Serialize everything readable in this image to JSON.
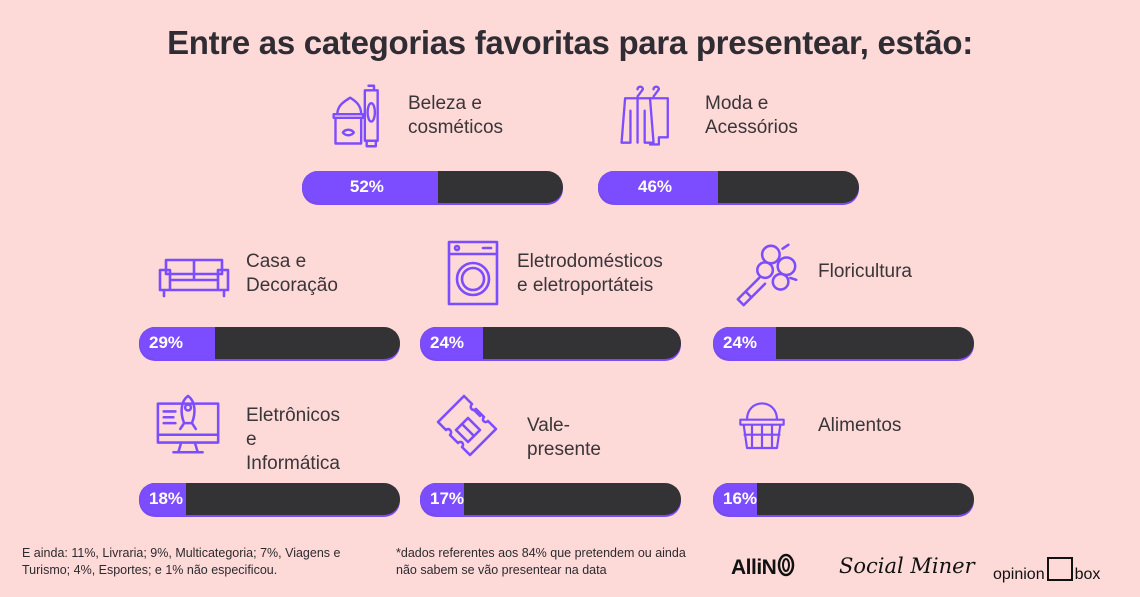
{
  "title": "Entre as categorias favoritas para presentear, estão:",
  "colors": {
    "background": "#fdd9d8",
    "fill": "#7c4dff",
    "track": "#333234"
  },
  "chart_data": {
    "type": "bar",
    "title": "Entre as categorias favoritas para presentear, estão:",
    "categories": [
      "Beleza e cosméticos",
      "Moda e Acessórios",
      "Casa e Decoração",
      "Eletrodomésticos e eletroportáteis",
      "Floricultura",
      "Eletrônicos e Informática",
      "Vale-presente",
      "Alimentos"
    ],
    "values": [
      52,
      46,
      29,
      24,
      24,
      18,
      17,
      16
    ],
    "ylim": [
      0,
      100
    ]
  },
  "items": [
    {
      "label": "Beleza e\ncosméticos",
      "value": 52,
      "pct": "52%",
      "icon": "cosmetics-icon"
    },
    {
      "label": "Moda e\nAcessórios",
      "value": 46,
      "pct": "46%",
      "icon": "clothes-hanger-icon"
    },
    {
      "label": "Casa e\nDecoração",
      "value": 29,
      "pct": "29%",
      "icon": "sofa-icon"
    },
    {
      "label": "Eletrodomésticos\ne eletroportáteis",
      "value": 24,
      "pct": "24%",
      "icon": "washing-machine-icon"
    },
    {
      "label": "Floricultura",
      "value": 24,
      "pct": "24%",
      "icon": "flower-bouquet-icon"
    },
    {
      "label": "Eletrônicos e\nInformática",
      "value": 18,
      "pct": "18%",
      "icon": "computer-rocket-icon"
    },
    {
      "label": "Vale-presente",
      "value": 17,
      "pct": "17%",
      "icon": "gift-ticket-icon"
    },
    {
      "label": "Alimentos",
      "value": 16,
      "pct": "16%",
      "icon": "basket-icon"
    }
  ],
  "footer": {
    "note_left": "E ainda: 11%, Livraria; 9%, Multicategoria; 7%, Viagens e Turismo; 4%, Esportes; e 1% não especificou.",
    "note_right": "*dados referentes aos 84% que pretendem ou ainda não sabem se vão presentear na data",
    "logos": [
      "AlliN",
      "Social Miner",
      "opinion box"
    ]
  }
}
